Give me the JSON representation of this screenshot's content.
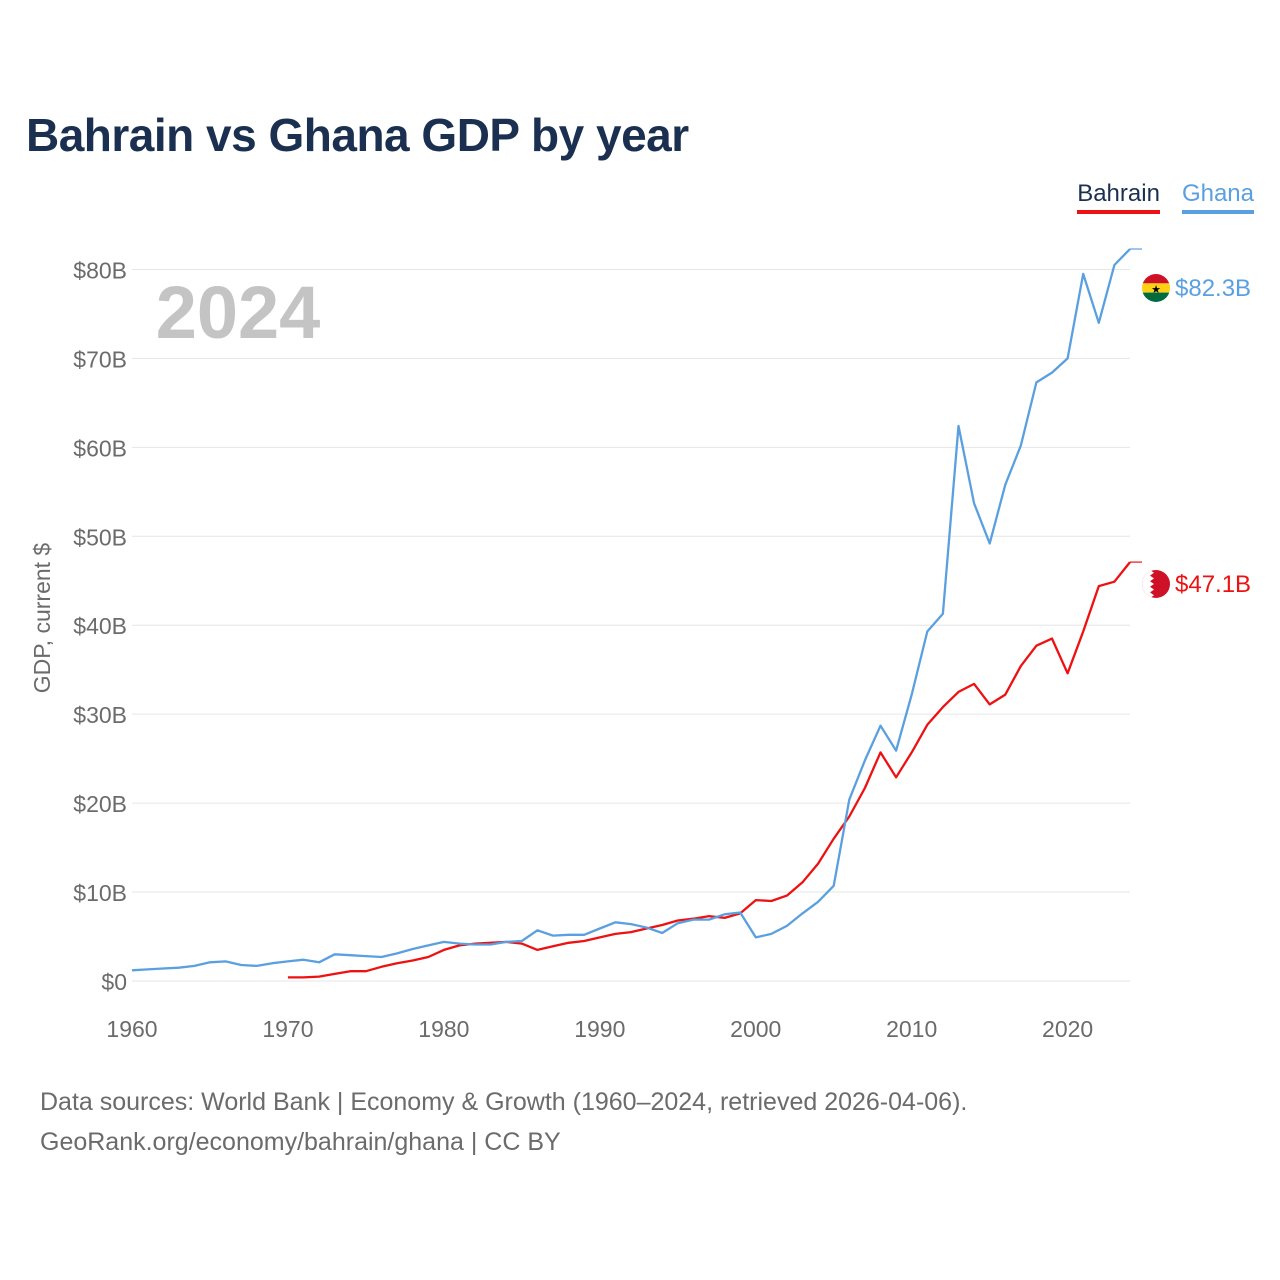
{
  "title": "Bahrain vs Ghana GDP by year",
  "year_label": "2024",
  "legend": [
    {
      "name": "Bahrain",
      "color": "#ee1111",
      "text_color": "#1b3050"
    },
    {
      "name": "Ghana",
      "color": "#5aa0e0",
      "text_color": "#5aa0e0"
    }
  ],
  "end_labels": {
    "bahrain": "$47.1B",
    "ghana": "$82.3B"
  },
  "footer": {
    "line1": "Data sources: World Bank | Economy & Growth (1960–2024, retrieved 2026-04-06).",
    "line2": "GeoRank.org/economy/bahrain/ghana | CC BY"
  },
  "chart_data": {
    "type": "line",
    "title": "Bahrain vs Ghana GDP by year",
    "xlabel": "",
    "ylabel": "GDP, current $",
    "xlim": [
      1960,
      2024
    ],
    "ylim": [
      0,
      85
    ],
    "y_unit": "billion current US$",
    "x_ticks": [
      1960,
      1970,
      1980,
      1990,
      2000,
      2010,
      2020
    ],
    "x_tick_labels": [
      "1960",
      "1970",
      "1980",
      "1990",
      "2000",
      "2010",
      "2020"
    ],
    "y_ticks": [
      0,
      10,
      20,
      30,
      40,
      50,
      60,
      70,
      80
    ],
    "y_tick_labels": [
      "$0",
      "$10B",
      "$20B",
      "$30B",
      "$40B",
      "$50B",
      "$60B",
      "$70B",
      "$80B"
    ],
    "grid": true,
    "legend": "top-right",
    "series": [
      {
        "name": "Bahrain",
        "color": "#ee1111",
        "x": [
          1970,
          1971,
          1972,
          1973,
          1974,
          1975,
          1976,
          1977,
          1978,
          1979,
          1980,
          1981,
          1982,
          1983,
          1984,
          1985,
          1986,
          1987,
          1988,
          1989,
          1990,
          1991,
          1992,
          1993,
          1994,
          1995,
          1996,
          1997,
          1998,
          1999,
          2000,
          2001,
          2002,
          2003,
          2004,
          2005,
          2006,
          2007,
          2008,
          2009,
          2010,
          2011,
          2012,
          2013,
          2014,
          2015,
          2016,
          2017,
          2018,
          2019,
          2020,
          2021,
          2022,
          2023,
          2024
        ],
        "values": [
          0.4,
          0.4,
          0.5,
          0.8,
          1.1,
          1.1,
          1.6,
          2.0,
          2.3,
          2.7,
          3.5,
          4.0,
          4.2,
          4.3,
          4.4,
          4.2,
          3.5,
          3.9,
          4.3,
          4.5,
          4.9,
          5.3,
          5.5,
          5.9,
          6.3,
          6.8,
          7.0,
          7.3,
          7.1,
          7.6,
          9.1,
          9.0,
          9.6,
          11.1,
          13.2,
          16.0,
          18.5,
          21.7,
          25.7,
          22.9,
          25.7,
          28.8,
          30.8,
          32.5,
          33.4,
          31.1,
          32.2,
          35.4,
          37.7,
          38.5,
          34.6,
          39.3,
          44.4,
          44.9,
          47.1
        ]
      },
      {
        "name": "Ghana",
        "color": "#5aa0e0",
        "x": [
          1960,
          1961,
          1962,
          1963,
          1964,
          1965,
          1966,
          1967,
          1968,
          1969,
          1970,
          1971,
          1972,
          1973,
          1974,
          1975,
          1976,
          1977,
          1978,
          1979,
          1980,
          1981,
          1982,
          1983,
          1984,
          1985,
          1986,
          1987,
          1988,
          1989,
          1990,
          1991,
          1992,
          1993,
          1994,
          1995,
          1996,
          1997,
          1998,
          1999,
          2000,
          2001,
          2002,
          2003,
          2004,
          2005,
          2006,
          2007,
          2008,
          2009,
          2010,
          2011,
          2012,
          2013,
          2014,
          2015,
          2016,
          2017,
          2018,
          2019,
          2020,
          2021,
          2022,
          2023,
          2024
        ],
        "values": [
          1.2,
          1.3,
          1.4,
          1.5,
          1.7,
          2.1,
          2.2,
          1.8,
          1.7,
          2.0,
          2.2,
          2.4,
          2.1,
          3.0,
          2.9,
          2.8,
          2.7,
          3.1,
          3.6,
          4.0,
          4.4,
          4.2,
          4.1,
          4.1,
          4.4,
          4.5,
          5.7,
          5.1,
          5.2,
          5.2,
          5.9,
          6.6,
          6.4,
          6.0,
          5.4,
          6.5,
          6.9,
          6.9,
          7.5,
          7.7,
          4.9,
          5.3,
          6.2,
          7.6,
          8.9,
          10.7,
          20.4,
          24.8,
          28.7,
          25.9,
          32.2,
          39.3,
          41.3,
          62.4,
          53.7,
          49.2,
          55.8,
          60.2,
          67.3,
          68.4,
          70.0,
          79.5,
          74.0,
          80.5,
          82.3
        ]
      }
    ]
  }
}
